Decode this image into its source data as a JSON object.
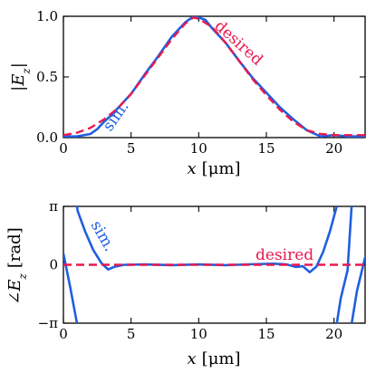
{
  "colors": {
    "sim": "#1f5fe0",
    "desired": "#e8194f"
  },
  "chart_data": [
    {
      "type": "line",
      "xlabel_var": "x",
      "xlabel_unit": "[μm]",
      "ylabel": "|E_z|",
      "xlim": [
        0,
        22.3
      ],
      "ylim": [
        0,
        1.0
      ],
      "xticks": [
        0,
        5,
        10,
        15,
        20
      ],
      "xtick_labels": [
        "0",
        "5",
        "10",
        "15",
        "20"
      ],
      "yticks": [
        0,
        0.5,
        1.0
      ],
      "ytick_labels": [
        "0.0",
        "0.5",
        "1.0"
      ],
      "series": [
        {
          "name": "desired",
          "style": "dashed",
          "x": [
            0,
            1,
            2,
            3,
            4,
            5,
            6,
            7,
            8,
            9,
            9.6,
            10,
            11,
            12,
            13,
            14,
            15,
            16,
            17,
            18,
            19,
            20,
            21,
            22.3
          ],
          "y": [
            0.02,
            0.04,
            0.08,
            0.15,
            0.24,
            0.36,
            0.51,
            0.66,
            0.81,
            0.94,
            0.99,
            0.98,
            0.91,
            0.78,
            0.63,
            0.48,
            0.35,
            0.23,
            0.13,
            0.06,
            0.03,
            0.02,
            0.02,
            0.02
          ]
        },
        {
          "name": "sim.",
          "style": "solid",
          "x": [
            0,
            1,
            2,
            2.5,
            3,
            3.5,
            4,
            4.5,
            5,
            6,
            7,
            8,
            9,
            9.5,
            10,
            10.5,
            11,
            12,
            13,
            14,
            15,
            16,
            17,
            18,
            19,
            20,
            21,
            22.3
          ],
          "y": [
            0.01,
            0.01,
            0.03,
            0.07,
            0.13,
            0.18,
            0.24,
            0.3,
            0.36,
            0.52,
            0.67,
            0.83,
            0.95,
            0.99,
            0.99,
            0.97,
            0.9,
            0.78,
            0.63,
            0.49,
            0.37,
            0.25,
            0.15,
            0.06,
            0.01,
            0.02,
            0.01,
            0.01
          ]
        }
      ],
      "annotations": [
        {
          "text": "desired",
          "series": "desired"
        },
        {
          "text": "sim.",
          "series": "sim."
        }
      ]
    },
    {
      "type": "line",
      "xlabel_var": "x",
      "xlabel_unit": "[μm]",
      "ylabel": "∠E_z [rad]",
      "xlim": [
        0,
        22.3
      ],
      "ylim": [
        -3.14159,
        3.14159
      ],
      "xticks": [
        0,
        5,
        10,
        15,
        20
      ],
      "xtick_labels": [
        "0",
        "5",
        "10",
        "15",
        "20"
      ],
      "yticks": [
        -3.14159,
        0,
        3.14159
      ],
      "ytick_labels": [
        "−π",
        "0",
        "π"
      ],
      "series": [
        {
          "name": "desired",
          "style": "dashed",
          "x": [
            0,
            22.3
          ],
          "y": [
            0,
            0
          ]
        },
        {
          "name": "sim.",
          "style": "solid",
          "x": [
            0,
            0.5,
            1.0,
            1.01,
            1.05,
            1.6,
            2.2,
            2.8,
            3.3,
            3.8,
            4.5,
            6,
            8,
            10,
            12,
            14,
            15.5,
            16.5,
            17.2,
            17.7,
            18.2,
            18.7,
            19.2,
            19.7,
            20.2,
            20.21,
            20.5,
            21.0,
            21.3,
            21.31,
            21.7,
            22.3
          ],
          "y": [
            0.6,
            -1.2,
            -3.14,
            3.14,
            2.9,
            1.8,
            0.8,
            0.1,
            -0.25,
            -0.1,
            0.0,
            0.02,
            -0.02,
            0.02,
            -0.02,
            0.03,
            0.06,
            0.02,
            -0.12,
            -0.08,
            -0.4,
            -0.1,
            0.7,
            1.8,
            3.14,
            -3.14,
            -1.8,
            -0.3,
            3.14,
            -3.14,
            -1.4,
            0.4
          ]
        }
      ],
      "annotations": [
        {
          "text": "desired",
          "series": "desired"
        },
        {
          "text": "sim.",
          "series": "sim."
        }
      ]
    }
  ]
}
